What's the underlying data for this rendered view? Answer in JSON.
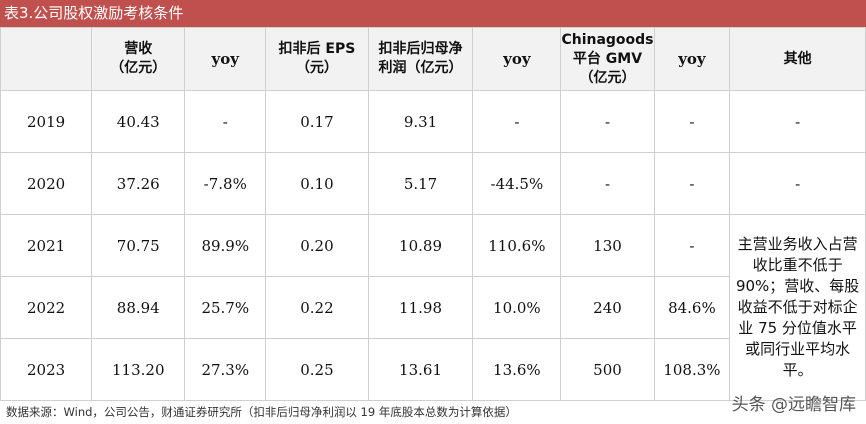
{
  "title": "表3.公司股权激励考核条件",
  "headers": [
    "",
    "营收\n（亿元）",
    "yoy",
    "扣非后 EPS\n（元）",
    "扣非后归母净\n利润（亿元）",
    "yoy",
    "Chinagoods\n平台 GMV\n（亿元）",
    "yoy",
    "其他"
  ],
  "rows": [
    {
      "year": "2019",
      "revenue": "40.43",
      "rev_yoy": "-",
      "eps": "0.17",
      "profit": "9.31",
      "profit_yoy": "-",
      "gmv": "-",
      "gmv_yoy": "-",
      "other": "-"
    },
    {
      "year": "2020",
      "revenue": "37.26",
      "rev_yoy": "-7.8%",
      "eps": "0.10",
      "profit": "5.17",
      "profit_yoy": "-44.5%",
      "gmv": "-",
      "gmv_yoy": "-",
      "other": "-"
    },
    {
      "year": "2021",
      "revenue": "70.75",
      "rev_yoy": "89.9%",
      "eps": "0.20",
      "profit": "10.89",
      "profit_yoy": "110.6%",
      "gmv": "130",
      "gmv_yoy": "-"
    },
    {
      "year": "2022",
      "revenue": "88.94",
      "rev_yoy": "25.7%",
      "eps": "0.22",
      "profit": "11.98",
      "profit_yoy": "10.0%",
      "gmv": "240",
      "gmv_yoy": "84.6%"
    },
    {
      "year": "2023",
      "revenue": "113.20",
      "rev_yoy": "27.3%",
      "eps": "0.25",
      "profit": "13.61",
      "profit_yoy": "13.6%",
      "gmv": "500",
      "gmv_yoy": "108.3%"
    }
  ],
  "other_merged": "主营业务收入占营收比重不低于90%；营收、每股收益不低于对标企业 75 分位值水平或同行业平均水平。",
  "footnote": "数据来源：Wind，公司公告，财通证券研究所（扣非后归母净利润以 19 年底股本总数为计算依据）",
  "watermark": "头条 @远瞻智库"
}
